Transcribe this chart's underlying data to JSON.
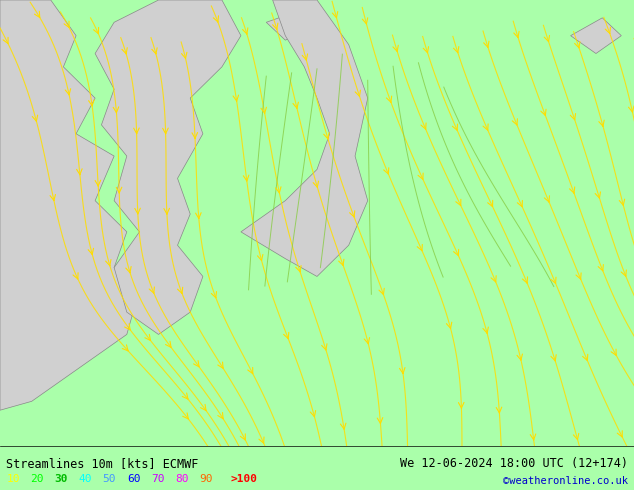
{
  "title_left": "Streamlines 10m [kts] ECMWF",
  "title_right": "We 12-06-2024 18:00 UTC (12+174)",
  "credit": "©weatheronline.co.uk",
  "bg_sea_color": "#aaffaa",
  "bg_land_color": "#cccccc",
  "streamline_colors": [
    "#ffdd00",
    "#ffdd00",
    "#ffdd00"
  ],
  "legend_labels": [
    "10",
    "20",
    "30",
    "40",
    "50",
    "60",
    "70",
    "80",
    "90",
    ">100"
  ],
  "legend_colors": [
    "#ffff00",
    "#00ff00",
    "#00cc00",
    "#00ffff",
    "#0099ff",
    "#0000ff",
    "#ff00ff",
    "#ff0000",
    "#ff6600",
    "#ff0000"
  ],
  "bottom_bar_color": "#000099",
  "fig_width": 6.34,
  "fig_height": 4.9,
  "dpi": 100
}
